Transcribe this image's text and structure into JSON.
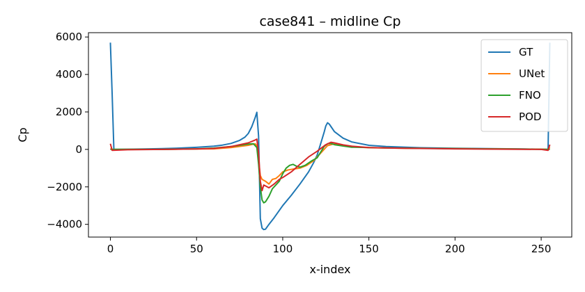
{
  "chart_data": {
    "type": "line",
    "title": "case841 – midline Cp",
    "xlabel": "x-index",
    "ylabel": "Cp",
    "xlim": [
      -12.75,
      267.75
    ],
    "ylim": [
      -4680,
      6230
    ],
    "xticks": [
      0,
      50,
      100,
      150,
      200,
      250
    ],
    "yticks": [
      -4000,
      -2000,
      0,
      2000,
      4000,
      6000
    ],
    "grid": false,
    "legend_position": "top-right",
    "series": [
      {
        "name": "GT",
        "color": "#1f77b4",
        "points": [
          [
            0,
            5700
          ],
          [
            1,
            3000
          ],
          [
            2,
            0
          ],
          [
            10,
            10
          ],
          [
            20,
            20
          ],
          [
            30,
            40
          ],
          [
            40,
            70
          ],
          [
            50,
            110
          ],
          [
            60,
            170
          ],
          [
            65,
            230
          ],
          [
            70,
            320
          ],
          [
            75,
            480
          ],
          [
            78,
            650
          ],
          [
            80,
            850
          ],
          [
            82,
            1200
          ],
          [
            84,
            1700
          ],
          [
            85,
            1980
          ],
          [
            86,
            700
          ],
          [
            87,
            -3700
          ],
          [
            88,
            -4200
          ],
          [
            89,
            -4280
          ],
          [
            90,
            -4260
          ],
          [
            92,
            -4000
          ],
          [
            95,
            -3650
          ],
          [
            100,
            -3000
          ],
          [
            105,
            -2450
          ],
          [
            110,
            -1850
          ],
          [
            115,
            -1200
          ],
          [
            118,
            -700
          ],
          [
            120,
            -300
          ],
          [
            122,
            300
          ],
          [
            124,
            900
          ],
          [
            125,
            1250
          ],
          [
            126,
            1420
          ],
          [
            127,
            1350
          ],
          [
            128,
            1220
          ],
          [
            130,
            950
          ],
          [
            135,
            600
          ],
          [
            140,
            400
          ],
          [
            150,
            220
          ],
          [
            160,
            150
          ],
          [
            180,
            90
          ],
          [
            200,
            60
          ],
          [
            220,
            40
          ],
          [
            240,
            20
          ],
          [
            252,
            5
          ],
          [
            254,
            5
          ],
          [
            255,
            5700
          ]
        ]
      },
      {
        "name": "UNet",
        "color": "#ff7f0e",
        "points": [
          [
            0,
            50
          ],
          [
            1,
            0
          ],
          [
            10,
            0
          ],
          [
            30,
            0
          ],
          [
            50,
            20
          ],
          [
            60,
            30
          ],
          [
            70,
            100
          ],
          [
            80,
            220
          ],
          [
            84,
            300
          ],
          [
            85,
            200
          ],
          [
            86,
            -600
          ],
          [
            87,
            -1400
          ],
          [
            88,
            -1600
          ],
          [
            90,
            -1700
          ],
          [
            92,
            -1850
          ],
          [
            94,
            -1600
          ],
          [
            96,
            -1550
          ],
          [
            98,
            -1400
          ],
          [
            100,
            -1200
          ],
          [
            103,
            -1100
          ],
          [
            106,
            -1050
          ],
          [
            110,
            -1000
          ],
          [
            114,
            -850
          ],
          [
            118,
            -600
          ],
          [
            120,
            -400
          ],
          [
            123,
            -100
          ],
          [
            126,
            200
          ],
          [
            130,
            300
          ],
          [
            135,
            220
          ],
          [
            140,
            150
          ],
          [
            150,
            90
          ],
          [
            170,
            60
          ],
          [
            200,
            40
          ],
          [
            230,
            20
          ],
          [
            250,
            10
          ],
          [
            254,
            0
          ],
          [
            255,
            100
          ]
        ]
      },
      {
        "name": "FNO",
        "color": "#2ca02c",
        "points": [
          [
            0,
            0
          ],
          [
            10,
            0
          ],
          [
            30,
            0
          ],
          [
            50,
            30
          ],
          [
            60,
            70
          ],
          [
            70,
            150
          ],
          [
            80,
            280
          ],
          [
            83,
            300
          ],
          [
            85,
            100
          ],
          [
            86,
            -800
          ],
          [
            87,
            -2000
          ],
          [
            88,
            -2700
          ],
          [
            89,
            -2850
          ],
          [
            90,
            -2800
          ],
          [
            92,
            -2500
          ],
          [
            94,
            -2100
          ],
          [
            96,
            -1900
          ],
          [
            98,
            -1700
          ],
          [
            100,
            -1300
          ],
          [
            102,
            -1000
          ],
          [
            104,
            -850
          ],
          [
            106,
            -800
          ],
          [
            108,
            -900
          ],
          [
            110,
            -950
          ],
          [
            113,
            -850
          ],
          [
            117,
            -600
          ],
          [
            120,
            -450
          ],
          [
            122,
            -150
          ],
          [
            124,
            150
          ],
          [
            126,
            300
          ],
          [
            128,
            320
          ],
          [
            130,
            250
          ],
          [
            135,
            180
          ],
          [
            140,
            120
          ],
          [
            160,
            80
          ],
          [
            200,
            40
          ],
          [
            230,
            20
          ],
          [
            250,
            5
          ],
          [
            255,
            0
          ]
        ]
      },
      {
        "name": "POD",
        "color": "#d62728",
        "points": [
          [
            0,
            300
          ],
          [
            1,
            -50
          ],
          [
            10,
            -20
          ],
          [
            30,
            0
          ],
          [
            50,
            20
          ],
          [
            60,
            50
          ],
          [
            70,
            150
          ],
          [
            80,
            350
          ],
          [
            84,
            500
          ],
          [
            85,
            550
          ],
          [
            86,
            -200
          ],
          [
            87,
            -1700
          ],
          [
            88,
            -2200
          ],
          [
            89,
            -1900
          ],
          [
            90,
            -1950
          ],
          [
            92,
            -2050
          ],
          [
            95,
            -1850
          ],
          [
            98,
            -1600
          ],
          [
            100,
            -1500
          ],
          [
            105,
            -1200
          ],
          [
            110,
            -800
          ],
          [
            115,
            -400
          ],
          [
            120,
            -100
          ],
          [
            125,
            250
          ],
          [
            128,
            380
          ],
          [
            130,
            350
          ],
          [
            135,
            240
          ],
          [
            140,
            170
          ],
          [
            150,
            100
          ],
          [
            170,
            60
          ],
          [
            200,
            30
          ],
          [
            230,
            10
          ],
          [
            250,
            0
          ],
          [
            254,
            -50
          ],
          [
            255,
            250
          ]
        ]
      }
    ]
  }
}
